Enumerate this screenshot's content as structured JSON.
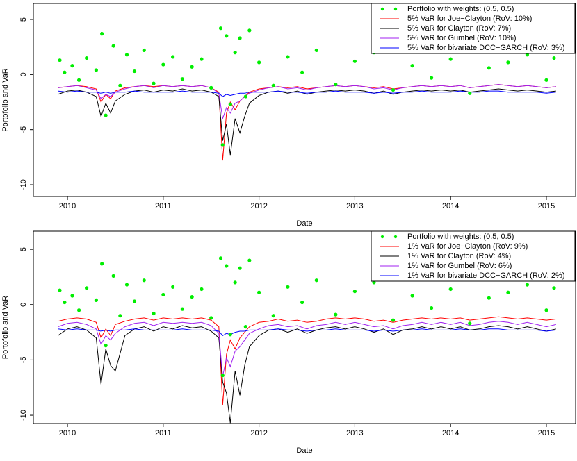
{
  "chart_data": [
    {
      "type": "line",
      "xlabel": "Date",
      "ylabel": "Portofolio and VaR",
      "xlim": [
        2009.644,
        2015.305
      ],
      "xticks": [
        2010,
        2011,
        2012,
        2013,
        2014,
        2015
      ],
      "ylim": [
        -11.07,
        6.45
      ],
      "yticks": [
        5,
        0,
        -5,
        -10
      ],
      "legend": "topright",
      "x": [
        2009.9,
        2010.0,
        2010.1,
        2010.2,
        2010.3,
        2010.35,
        2010.4,
        2010.45,
        2010.5,
        2010.6,
        2010.7,
        2010.8,
        2010.9,
        2011.0,
        2011.1,
        2011.2,
        2011.3,
        2011.4,
        2011.5,
        2011.58,
        2011.62,
        2011.66,
        2011.7,
        2011.75,
        2011.8,
        2011.85,
        2011.9,
        2012.0,
        2012.1,
        2012.2,
        2012.3,
        2012.4,
        2012.5,
        2012.6,
        2012.7,
        2012.8,
        2012.9,
        2013.0,
        2013.1,
        2013.2,
        2013.3,
        2013.4,
        2013.5,
        2013.6,
        2013.7,
        2013.8,
        2013.9,
        2014.0,
        2014.1,
        2014.2,
        2014.3,
        2014.4,
        2014.5,
        2014.6,
        2014.7,
        2014.8,
        2014.9,
        2015.0,
        2015.1
      ],
      "series": [
        {
          "name": "Portfolio with weights: (0.5, 0.5)",
          "type": "scatter",
          "color": "#00ee00",
          "x": [
            2009.92,
            2009.97,
            2010.05,
            2010.12,
            2010.2,
            2010.3,
            2010.36,
            2010.4,
            2010.48,
            2010.55,
            2010.62,
            2010.7,
            2010.8,
            2010.9,
            2011.0,
            2011.1,
            2011.2,
            2011.3,
            2011.4,
            2011.5,
            2011.6,
            2011.62,
            2011.66,
            2011.7,
            2011.75,
            2011.8,
            2011.86,
            2011.9,
            2012.0,
            2012.15,
            2012.3,
            2012.45,
            2012.6,
            2012.8,
            2013.0,
            2013.2,
            2013.4,
            2013.6,
            2013.8,
            2014.0,
            2014.2,
            2014.4,
            2014.6,
            2014.8,
            2015.0,
            2015.08
          ],
          "values": [
            1.3,
            0.2,
            0.8,
            -0.5,
            1.5,
            0.4,
            3.7,
            -3.7,
            2.6,
            -1.0,
            1.8,
            0.3,
            2.2,
            -0.8,
            0.9,
            1.6,
            -0.4,
            0.7,
            1.4,
            -1.2,
            4.2,
            -6.4,
            3.5,
            -2.7,
            2.0,
            3.3,
            -2.0,
            4.0,
            1.1,
            -1.0,
            1.6,
            0.2,
            2.2,
            -0.9,
            1.2,
            2.0,
            -1.4,
            0.8,
            -0.3,
            1.4,
            -1.7,
            0.6,
            1.1,
            1.8,
            -0.5,
            1.5
          ]
        },
        {
          "name": "5% VaR for Joe−Clayton (RoV: 10%)",
          "color": "#ff0000",
          "values": [
            -1.2,
            -1.1,
            -1.0,
            -1.1,
            -1.3,
            -2.5,
            -1.8,
            -2.2,
            -1.5,
            -1.2,
            -1.1,
            -1.0,
            -1.1,
            -1.0,
            -1.1,
            -1.0,
            -1.1,
            -1.0,
            -1.2,
            -1.6,
            -7.8,
            -3.5,
            -2.5,
            -3.2,
            -2.4,
            -2.0,
            -1.6,
            -1.3,
            -1.2,
            -1.1,
            -1.2,
            -1.1,
            -1.3,
            -1.2,
            -1.1,
            -1.0,
            -1.1,
            -1.0,
            -1.1,
            -1.2,
            -1.1,
            -1.3,
            -1.2,
            -1.1,
            -1.0,
            -1.1,
            -1.0,
            -1.1,
            -1.0,
            -1.2,
            -1.1,
            -1.0,
            -0.9,
            -1.0,
            -1.1,
            -1.0,
            -1.1,
            -1.2,
            -1.1
          ]
        },
        {
          "name": "5% VaR for Clayton (RoV: 7%)",
          "color": "#000000",
          "values": [
            -1.8,
            -1.5,
            -1.4,
            -1.6,
            -2.0,
            -3.8,
            -2.6,
            -3.5,
            -2.4,
            -1.8,
            -1.5,
            -1.4,
            -1.6,
            -1.4,
            -1.5,
            -1.3,
            -1.5,
            -1.4,
            -1.6,
            -2.0,
            -6.0,
            -4.5,
            -7.3,
            -4.0,
            -5.3,
            -3.8,
            -2.6,
            -1.9,
            -1.6,
            -1.5,
            -1.7,
            -1.5,
            -1.8,
            -1.6,
            -1.5,
            -1.4,
            -1.5,
            -1.4,
            -1.5,
            -1.7,
            -1.5,
            -1.8,
            -1.6,
            -1.5,
            -1.4,
            -1.5,
            -1.4,
            -1.5,
            -1.4,
            -1.6,
            -1.5,
            -1.4,
            -1.3,
            -1.4,
            -1.5,
            -1.4,
            -1.5,
            -1.6,
            -1.5
          ]
        },
        {
          "name": "5% VaR for Gumbel (RoV: 10%)",
          "color": "#a020f0",
          "values": [
            -1.2,
            -1.1,
            -1.0,
            -1.2,
            -1.4,
            -2.2,
            -1.8,
            -2.0,
            -1.6,
            -1.3,
            -1.1,
            -1.0,
            -1.2,
            -1.0,
            -1.1,
            -1.0,
            -1.1,
            -1.0,
            -1.2,
            -1.7,
            -4.0,
            -3.0,
            -3.5,
            -2.6,
            -2.4,
            -2.0,
            -1.7,
            -1.4,
            -1.2,
            -1.1,
            -1.3,
            -1.2,
            -1.4,
            -1.2,
            -1.1,
            -1.0,
            -1.1,
            -1.0,
            -1.1,
            -1.3,
            -1.2,
            -1.4,
            -1.2,
            -1.1,
            -1.0,
            -1.1,
            -1.0,
            -1.1,
            -1.0,
            -1.2,
            -1.1,
            -1.0,
            -0.9,
            -1.0,
            -1.1,
            -1.0,
            -1.1,
            -1.2,
            -1.1
          ]
        },
        {
          "name": "5% VaR for bivariate DCC−GARCH (RoV: 3%)",
          "color": "#0000ff",
          "values": [
            -1.5,
            -1.6,
            -1.5,
            -1.6,
            -1.6,
            -1.7,
            -1.6,
            -1.7,
            -1.6,
            -1.6,
            -1.5,
            -1.6,
            -1.6,
            -1.6,
            -1.6,
            -1.5,
            -1.6,
            -1.6,
            -1.6,
            -1.7,
            -2.0,
            -1.8,
            -1.9,
            -1.8,
            -1.7,
            -1.7,
            -1.6,
            -1.6,
            -1.6,
            -1.5,
            -1.6,
            -1.6,
            -1.7,
            -1.6,
            -1.6,
            -1.5,
            -1.6,
            -1.6,
            -1.6,
            -1.7,
            -1.6,
            -1.7,
            -1.6,
            -1.6,
            -1.5,
            -1.6,
            -1.6,
            -1.6,
            -1.5,
            -1.6,
            -1.6,
            -1.5,
            -1.5,
            -1.6,
            -1.6,
            -1.6,
            -1.6,
            -1.7,
            -1.6
          ]
        }
      ]
    },
    {
      "type": "line",
      "xlabel": "Date",
      "ylabel": "Portofolio and VaR",
      "xlim": [
        2009.644,
        2015.305
      ],
      "xticks": [
        2010,
        2011,
        2012,
        2013,
        2014,
        2015
      ],
      "ylim": [
        -10.75,
        6.64
      ],
      "yticks": [
        5,
        0,
        -5,
        -10
      ],
      "legend": "topright",
      "x": [
        2009.9,
        2010.0,
        2010.1,
        2010.2,
        2010.3,
        2010.35,
        2010.4,
        2010.45,
        2010.5,
        2010.6,
        2010.7,
        2010.8,
        2010.9,
        2011.0,
        2011.1,
        2011.2,
        2011.3,
        2011.4,
        2011.5,
        2011.58,
        2011.62,
        2011.66,
        2011.7,
        2011.75,
        2011.8,
        2011.85,
        2011.9,
        2012.0,
        2012.1,
        2012.2,
        2012.3,
        2012.4,
        2012.5,
        2012.6,
        2012.7,
        2012.8,
        2012.9,
        2013.0,
        2013.1,
        2013.2,
        2013.3,
        2013.4,
        2013.5,
        2013.6,
        2013.7,
        2013.8,
        2013.9,
        2014.0,
        2014.1,
        2014.2,
        2014.3,
        2014.4,
        2014.5,
        2014.6,
        2014.7,
        2014.8,
        2014.9,
        2015.0,
        2015.1
      ],
      "series": [
        {
          "name": "Portfolio with weights: (0.5, 0.5)",
          "type": "scatter",
          "color": "#00ee00",
          "x": [
            2009.92,
            2009.97,
            2010.05,
            2010.12,
            2010.2,
            2010.3,
            2010.36,
            2010.4,
            2010.48,
            2010.55,
            2010.62,
            2010.7,
            2010.8,
            2010.9,
            2011.0,
            2011.1,
            2011.2,
            2011.3,
            2011.4,
            2011.5,
            2011.6,
            2011.62,
            2011.66,
            2011.7,
            2011.75,
            2011.8,
            2011.86,
            2011.9,
            2012.0,
            2012.15,
            2012.3,
            2012.45,
            2012.6,
            2012.8,
            2013.0,
            2013.2,
            2013.4,
            2013.6,
            2013.8,
            2014.0,
            2014.2,
            2014.4,
            2014.6,
            2014.8,
            2015.0,
            2015.08
          ],
          "values": [
            1.3,
            0.2,
            0.8,
            -0.5,
            1.5,
            0.4,
            3.7,
            -3.7,
            2.6,
            -1.0,
            1.8,
            0.3,
            2.2,
            -0.8,
            0.9,
            1.6,
            -0.4,
            0.7,
            1.4,
            -1.2,
            4.2,
            -6.4,
            3.5,
            -2.7,
            2.0,
            3.3,
            -2.0,
            4.0,
            1.1,
            -1.0,
            1.6,
            0.2,
            2.2,
            -0.9,
            1.2,
            2.0,
            -1.4,
            0.8,
            -0.3,
            1.4,
            -1.7,
            0.6,
            1.1,
            1.8,
            -0.5,
            1.5
          ]
        },
        {
          "name": "1% VaR for Joe−Clayton (RoV: 9%)",
          "color": "#ff0000",
          "values": [
            -1.5,
            -1.3,
            -1.2,
            -1.3,
            -1.6,
            -3.0,
            -2.2,
            -2.8,
            -1.8,
            -1.5,
            -1.3,
            -1.2,
            -1.4,
            -1.2,
            -1.3,
            -1.2,
            -1.3,
            -1.2,
            -1.4,
            -2.0,
            -9.1,
            -4.5,
            -3.2,
            -4.0,
            -3.0,
            -2.5,
            -2.0,
            -1.6,
            -1.5,
            -1.3,
            -1.5,
            -1.4,
            -1.6,
            -1.5,
            -1.3,
            -1.2,
            -1.3,
            -1.2,
            -1.3,
            -1.5,
            -1.4,
            -1.6,
            -1.4,
            -1.3,
            -1.2,
            -1.3,
            -1.2,
            -1.3,
            -1.2,
            -1.4,
            -1.3,
            -1.2,
            -1.1,
            -1.2,
            -1.3,
            -1.2,
            -1.3,
            -1.4,
            -1.3
          ]
        },
        {
          "name": "1% VaR for Clayton (RoV: 4%)",
          "color": "#000000",
          "values": [
            -2.8,
            -2.2,
            -2.0,
            -2.3,
            -3.0,
            -7.2,
            -4.0,
            -5.5,
            -6.0,
            -2.8,
            -2.2,
            -2.0,
            -2.4,
            -2.0,
            -2.2,
            -1.9,
            -2.1,
            -2.0,
            -2.4,
            -3.0,
            -7.0,
            -8.0,
            -10.7,
            -6.0,
            -8.2,
            -5.5,
            -3.8,
            -2.8,
            -2.3,
            -2.2,
            -2.5,
            -2.2,
            -2.6,
            -2.3,
            -2.1,
            -2.0,
            -2.2,
            -2.0,
            -2.2,
            -2.5,
            -2.2,
            -2.7,
            -2.3,
            -2.2,
            -2.0,
            -2.2,
            -2.0,
            -2.2,
            -2.0,
            -2.3,
            -2.2,
            -2.0,
            -1.9,
            -2.0,
            -2.2,
            -2.0,
            -2.2,
            -2.4,
            -2.2
          ]
        },
        {
          "name": "1% VaR for Gumbel (RoV: 6%)",
          "color": "#a020f0",
          "values": [
            -2.0,
            -1.7,
            -1.6,
            -1.8,
            -2.2,
            -3.6,
            -2.8,
            -3.2,
            -2.6,
            -2.0,
            -1.7,
            -1.6,
            -1.9,
            -1.6,
            -1.7,
            -1.6,
            -1.7,
            -1.6,
            -1.9,
            -2.6,
            -6.5,
            -4.8,
            -5.6,
            -4.2,
            -3.8,
            -3.2,
            -2.6,
            -2.2,
            -1.9,
            -1.8,
            -2.0,
            -1.9,
            -2.2,
            -1.9,
            -1.8,
            -1.6,
            -1.8,
            -1.6,
            -1.8,
            -2.0,
            -1.9,
            -2.2,
            -1.9,
            -1.8,
            -1.6,
            -1.8,
            -1.6,
            -1.8,
            -1.6,
            -1.9,
            -1.8,
            -1.6,
            -1.5,
            -1.6,
            -1.8,
            -1.6,
            -1.8,
            -2.0,
            -1.8
          ]
        },
        {
          "name": "1% VaR for bivariate DCC−GARCH (RoV: 2%)",
          "color": "#0000ff",
          "values": [
            -2.2,
            -2.3,
            -2.2,
            -2.3,
            -2.3,
            -2.4,
            -2.3,
            -2.4,
            -2.3,
            -2.3,
            -2.2,
            -2.3,
            -2.3,
            -2.3,
            -2.3,
            -2.2,
            -2.3,
            -2.3,
            -2.3,
            -2.4,
            -2.8,
            -2.6,
            -2.7,
            -2.5,
            -2.4,
            -2.4,
            -2.3,
            -2.3,
            -2.3,
            -2.2,
            -2.3,
            -2.3,
            -2.4,
            -2.3,
            -2.3,
            -2.2,
            -2.3,
            -2.3,
            -2.3,
            -2.4,
            -2.3,
            -2.4,
            -2.3,
            -2.3,
            -2.2,
            -2.3,
            -2.3,
            -2.3,
            -2.2,
            -2.3,
            -2.3,
            -2.2,
            -2.2,
            -2.3,
            -2.3,
            -2.3,
            -2.3,
            -2.4,
            -2.3
          ]
        }
      ]
    }
  ]
}
